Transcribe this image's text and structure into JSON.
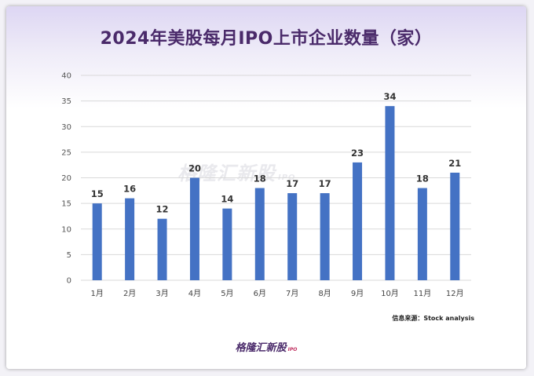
{
  "chart_data": {
    "type": "bar",
    "title": "2024年美股每月IPO上市企业数量（家）",
    "categories": [
      "1月",
      "2月",
      "3月",
      "4月",
      "5月",
      "6月",
      "7月",
      "8月",
      "9月",
      "10月",
      "11月",
      "12月"
    ],
    "values": [
      15,
      16,
      12,
      20,
      14,
      18,
      17,
      17,
      23,
      34,
      18,
      21
    ],
    "ylim": [
      0,
      40
    ],
    "yticks": [
      0,
      5,
      10,
      15,
      20,
      25,
      30,
      35,
      40
    ],
    "xlabel": "",
    "ylabel": "",
    "grid": true,
    "bar_color": "#4472c4",
    "source": "信息来源：Stock analysis"
  },
  "watermark": {
    "text": "格隆汇新股",
    "sub": "IPO"
  },
  "brand": {
    "text": "格隆汇新股",
    "sub": "IPO"
  },
  "colors": {
    "title": "#4a2a6a",
    "grid": "#d9d9d9"
  }
}
